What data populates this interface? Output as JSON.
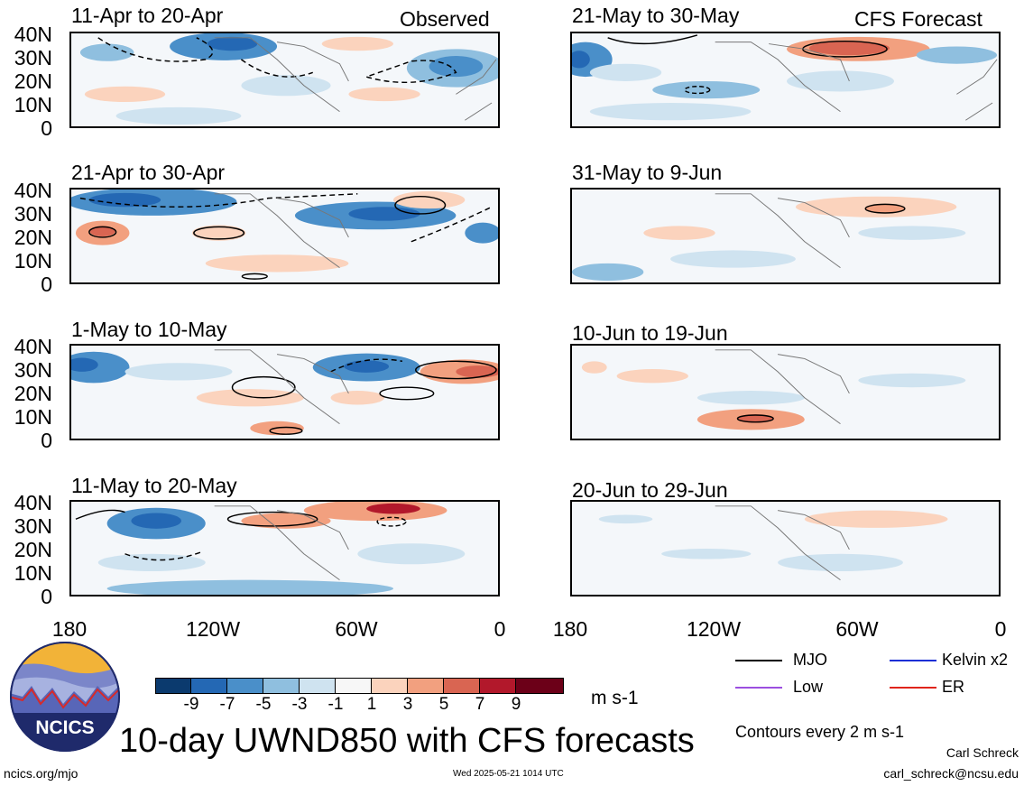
{
  "panels": [
    {
      "id": "p1",
      "title": "11-Apr to 20-Apr",
      "tag": "Observed"
    },
    {
      "id": "p2",
      "title": "21-May to 30-May",
      "tag": "CFS Forecast"
    },
    {
      "id": "p3",
      "title": "21-Apr to 30-Apr",
      "tag": ""
    },
    {
      "id": "p4",
      "title": "31-May to 9-Jun",
      "tag": ""
    },
    {
      "id": "p5",
      "title": "1-May to 10-May",
      "tag": ""
    },
    {
      "id": "p6",
      "title": "10-Jun to 19-Jun",
      "tag": ""
    },
    {
      "id": "p7",
      "title": "11-May to 20-May",
      "tag": ""
    },
    {
      "id": "p8",
      "title": "20-Jun to 29-Jun",
      "tag": ""
    }
  ],
  "lat_labels": [
    "40N",
    "30N",
    "20N",
    "10N",
    "0"
  ],
  "lon_labels": [
    "180",
    "120W",
    "60W",
    "0"
  ],
  "legend": {
    "items": [
      {
        "label": "MJO",
        "color": "#000000"
      },
      {
        "label": "Kelvin x2",
        "color": "#1c2fd6"
      },
      {
        "label": "Low",
        "color": "#9b4fe0"
      },
      {
        "label": "ER",
        "color": "#e0251b"
      }
    ],
    "contours_note": "Contours every 2 m s-1"
  },
  "colorbar": {
    "labels": [
      "-9",
      "-7",
      "-5",
      "-3",
      "-1",
      "1",
      "3",
      "5",
      "7",
      "9"
    ],
    "colors": [
      "#0b3a6e",
      "#2468b4",
      "#4a8fc9",
      "#8fbfdf",
      "#cfe3f0",
      "#f7f7f7",
      "#fbd3bd",
      "#f2a07f",
      "#d96552",
      "#b2182b",
      "#6c0018"
    ],
    "units": "m s-1"
  },
  "logo": {
    "text": "NCICS"
  },
  "main_title": "10-day UWND850 with CFS forecasts",
  "footer": {
    "left": "ncics.org/mjo",
    "center": "Wed 2025-05-21 1014 UTC",
    "author": "Carl Schreck",
    "email": "carl_schreck@ncsu.edu"
  }
}
